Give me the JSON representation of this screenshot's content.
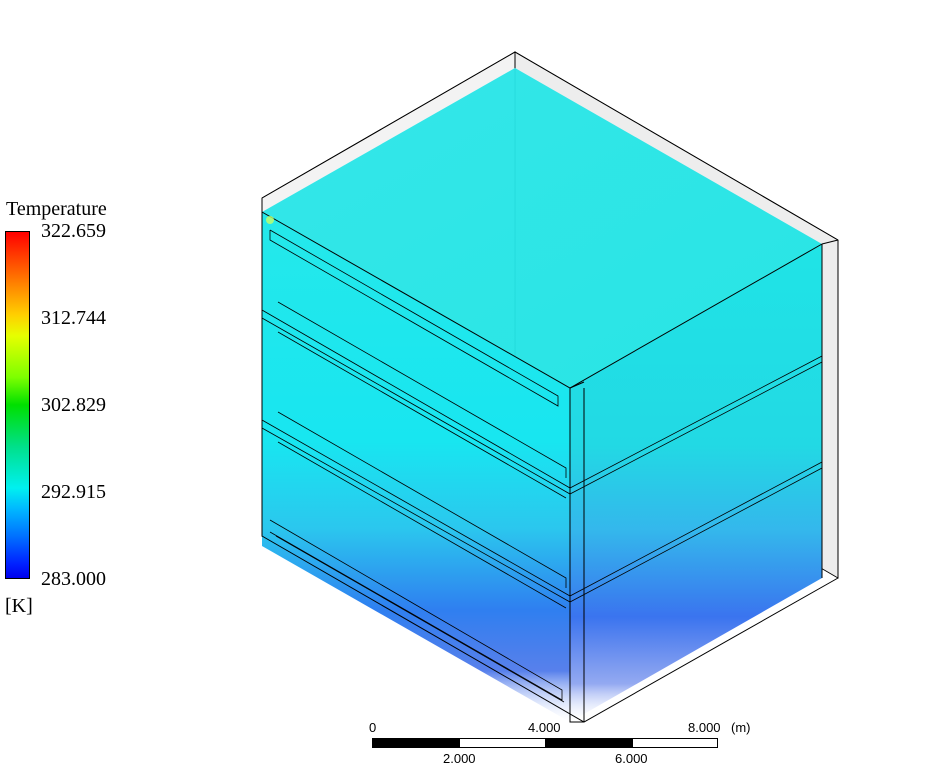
{
  "legend": {
    "title": "Temperature",
    "ticks": [
      "322.659",
      "312.744",
      "302.829",
      "292.915",
      "283.000"
    ],
    "unit": "[K]",
    "colormap": [
      "#ff0000",
      "#ffd000",
      "#00e000",
      "#00f0f0",
      "#0000ee"
    ]
  },
  "scale_bar": {
    "top_labels": [
      "0",
      "4.000",
      "8.000"
    ],
    "bottom_labels": [
      "2.000",
      "6.000"
    ],
    "unit": "(m)"
  },
  "colors": {
    "top_fluid": "#1ee6e6",
    "bottom_fluid": "#2f62f0",
    "outline": "#000000",
    "frame_side": "#e6e6e6"
  }
}
